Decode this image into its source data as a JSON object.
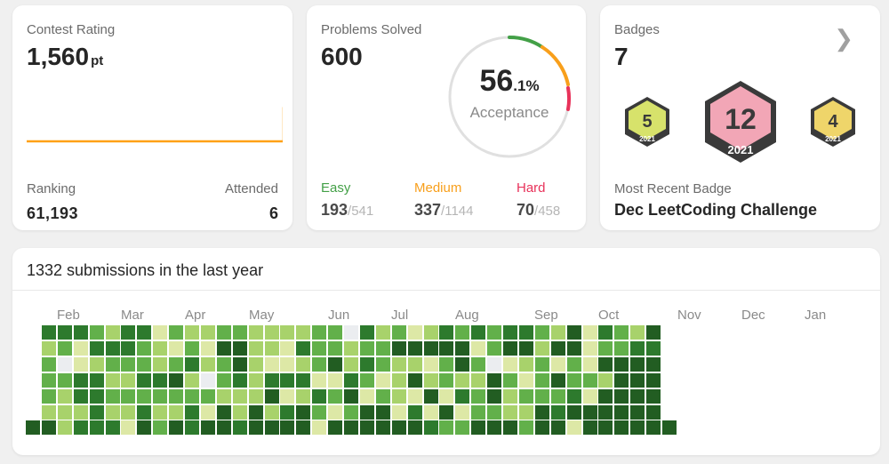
{
  "rating": {
    "label": "Contest Rating",
    "value": "1,560",
    "unit": "pt",
    "ranking_label": "Ranking",
    "ranking_value": "61,193",
    "attended_label": "Attended",
    "attended_value": "6",
    "line_color": "#ffa116"
  },
  "problems": {
    "label": "Problems Solved",
    "value": "600",
    "acceptance_int": "56",
    "acceptance_dec": ".1%",
    "acceptance_label": "Acceptance",
    "easy": {
      "label": "Easy",
      "solved": "193",
      "total": "/541",
      "color": "#43a047"
    },
    "medium": {
      "label": "Medium",
      "solved": "337",
      "total": "/1144",
      "color": "#f89f1b"
    },
    "hard": {
      "label": "Hard",
      "solved": "70",
      "total": "/458",
      "color": "#e8325a"
    }
  },
  "badges": {
    "label": "Badges",
    "value": "7",
    "items": [
      {
        "num": "5",
        "year": "2021"
      },
      {
        "num": "12",
        "year": "2021"
      },
      {
        "num": "4",
        "year": "2021"
      }
    ],
    "recent_label": "Most Recent Badge",
    "recent_value": "Dec LeetCoding Challenge"
  },
  "submissions": {
    "title": "1332 submissions in the last year",
    "months": [
      "Feb",
      "Mar",
      "Apr",
      "May",
      "Jun",
      "Jul",
      "Aug",
      "Sep",
      "Oct",
      "Nov",
      "Dec",
      "Jan"
    ],
    "palette": [
      "#ebedf0",
      "#dde8a6",
      "#a8d26b",
      "#62b04a",
      "#2d7a2d",
      "#225d22"
    ],
    "grid": [
      "x444324413223322223304231243434432514325",
      "x231444321315522143323355555135525513344",
      "x301233323423521123524322135301231315555",
      "x334422445203424441143125232253135332555",
      "x324433333332225124351321514352333415555",
      "x222422422415252453135514151332254555555",
      "55244415354554555515555554335553551555555"
    ]
  }
}
